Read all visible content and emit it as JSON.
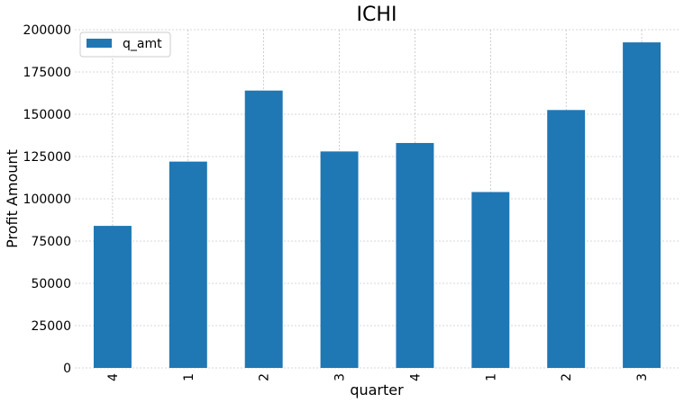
{
  "chart_data": {
    "type": "bar",
    "title": "ICHI",
    "xlabel": "quarter",
    "ylabel": "Profit Amount",
    "categories": [
      "4",
      "1",
      "2",
      "3",
      "4",
      "1",
      "2",
      "3"
    ],
    "series": [
      {
        "name": "q_amt",
        "color": "#1f77b4",
        "values": [
          84000,
          122000,
          164000,
          128000,
          133000,
          104000,
          152500,
          192500
        ]
      }
    ],
    "ylim": [
      0,
      200000
    ],
    "yticks": [
      0,
      25000,
      50000,
      75000,
      100000,
      125000,
      150000,
      175000,
      200000
    ],
    "grid": true,
    "legend_position": "top-left",
    "x_tick_rotation": 90
  }
}
